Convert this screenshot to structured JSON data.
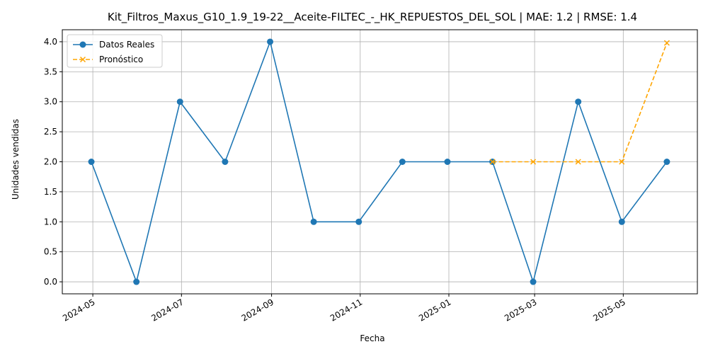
{
  "chart_data": {
    "type": "line",
    "title": "Kit_Filtros_Maxus_G10_1.9_19-22__Aceite-FILTEC_-_HK_REPUESTOS_DEL_SOL | MAE: 1.2 | RMSE: 1.4",
    "xlabel": "Fecha",
    "ylabel": "Unidades vendidas",
    "ylim": [
      -0.2,
      4.2
    ],
    "xlim": [
      "2024-04-10",
      "2025-06-21"
    ],
    "yticks": [
      0.0,
      0.5,
      1.0,
      1.5,
      2.0,
      2.5,
      3.0,
      3.5,
      4.0
    ],
    "ytick_labels": [
      "0.0",
      "0.5",
      "1.0",
      "1.5",
      "2.0",
      "2.5",
      "3.0",
      "3.5",
      "4.0"
    ],
    "xticks": [
      "2024-05-01",
      "2024-07-01",
      "2024-09-01",
      "2024-11-01",
      "2025-01-01",
      "2025-03-01",
      "2025-05-01"
    ],
    "xtick_labels": [
      "2024-05",
      "2024-07",
      "2024-09",
      "2024-11",
      "2025-01",
      "2025-03",
      "2025-05"
    ],
    "grid": true,
    "legend_position": "top-left",
    "series": [
      {
        "name": "Datos Reales",
        "color": "#1f77b4",
        "style": "solid",
        "marker": "circle",
        "x": [
          "2024-04-30",
          "2024-05-31",
          "2024-06-30",
          "2024-07-31",
          "2024-08-31",
          "2024-09-30",
          "2024-10-31",
          "2024-11-30",
          "2024-12-31",
          "2025-01-31",
          "2025-02-28",
          "2025-03-31",
          "2025-04-30",
          "2025-05-31"
        ],
        "values": [
          2,
          0,
          3,
          2,
          4,
          1,
          1,
          2,
          2,
          2,
          0,
          3,
          1,
          2
        ]
      },
      {
        "name": "Pronóstico",
        "color": "#ffa500",
        "style": "dashed",
        "marker": "x",
        "x": [
          "2025-01-31",
          "2025-02-28",
          "2025-03-31",
          "2025-04-30",
          "2025-05-31"
        ],
        "values": [
          2,
          2,
          2,
          2,
          3.98
        ]
      }
    ]
  }
}
